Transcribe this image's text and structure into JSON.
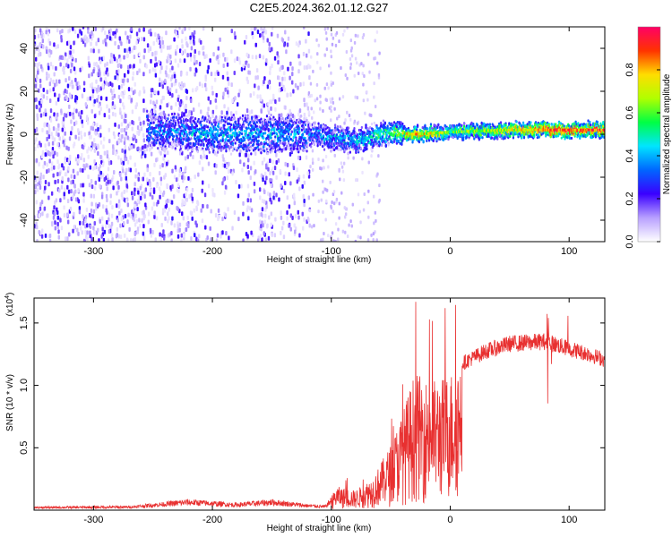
{
  "chart_data": [
    {
      "type": "heatmap",
      "title": "C2E5.2024.362.01.12.G27",
      "xlabel": "Height of straight line (km)",
      "ylabel": "Frequency (Hz)",
      "xlim": [
        -350,
        130
      ],
      "ylim": [
        -50,
        50
      ],
      "xticks": [
        -300,
        -200,
        -100,
        0,
        100
      ],
      "yticks": [
        -40,
        -20,
        0,
        20,
        40
      ],
      "colorbar": {
        "label": "Normalized spectral amplitude",
        "range": [
          0,
          1
        ],
        "ticks": [
          "0.0",
          "0.2",
          "0.4",
          "0.6",
          "0.8"
        ],
        "colors": [
          "#ffffff",
          "#b8a0ff",
          "#3a00ff",
          "#0066ff",
          "#00e5ff",
          "#00ff44",
          "#b0ff00",
          "#ffdd00",
          "#ff3300",
          "#ff0066"
        ]
      },
      "ridge": {
        "description_values": [
          {
            "x": -250,
            "freq": 2,
            "amp": 0.3
          },
          {
            "x": -200,
            "freq": 0,
            "amp": 0.35
          },
          {
            "x": -150,
            "freq": 0,
            "amp": 0.35
          },
          {
            "x": -120,
            "freq": 0,
            "amp": 0.3
          },
          {
            "x": -80,
            "freq": -3,
            "amp": 0.38
          },
          {
            "x": -50,
            "freq": 1,
            "amp": 0.5
          },
          {
            "x": -30,
            "freq": 0,
            "amp": 0.75
          },
          {
            "x": 0,
            "freq": 1,
            "amp": 0.55
          },
          {
            "x": 50,
            "freq": 2,
            "amp": 0.65
          },
          {
            "x": 90,
            "freq": 2,
            "amp": 0.85
          },
          {
            "x": 130,
            "freq": 2,
            "amp": 0.8
          }
        ]
      }
    },
    {
      "type": "line",
      "xlabel": "Height of straight line (km)",
      "ylabel": "SNR (10 * v/v)",
      "scale_label": "(x10",
      "scale_exp": "4",
      "xlim": [
        -350,
        130
      ],
      "ylim": [
        0,
        17000
      ],
      "xticks": [
        -300,
        -200,
        -100,
        0,
        100
      ],
      "yticks": [
        "0.5",
        "1.0",
        "1.5"
      ],
      "ytick_values": [
        5000,
        10000,
        15000
      ],
      "series": [
        {
          "name": "SNR",
          "color": "#e83030",
          "envelope": [
            {
              "x": -350,
              "y": 300
            },
            {
              "x": -270,
              "y": 350
            },
            {
              "x": -220,
              "y": 900
            },
            {
              "x": -180,
              "y": 600
            },
            {
              "x": -150,
              "y": 900
            },
            {
              "x": -120,
              "y": 500
            },
            {
              "x": -105,
              "y": 400
            },
            {
              "x": -95,
              "y": 1800
            },
            {
              "x": -80,
              "y": 1500
            },
            {
              "x": -65,
              "y": 2500
            },
            {
              "x": -50,
              "y": 5000
            },
            {
              "x": -40,
              "y": 7500
            },
            {
              "x": -30,
              "y": 10500
            },
            {
              "x": -20,
              "y": 10000
            },
            {
              "x": -10,
              "y": 10000
            },
            {
              "x": 0,
              "y": 10500
            },
            {
              "x": 10,
              "y": 12000
            },
            {
              "x": 30,
              "y": 13000
            },
            {
              "x": 50,
              "y": 13600
            },
            {
              "x": 80,
              "y": 13800
            },
            {
              "x": 100,
              "y": 13200
            },
            {
              "x": 115,
              "y": 12800
            },
            {
              "x": 130,
              "y": 12300
            }
          ]
        }
      ]
    }
  ]
}
